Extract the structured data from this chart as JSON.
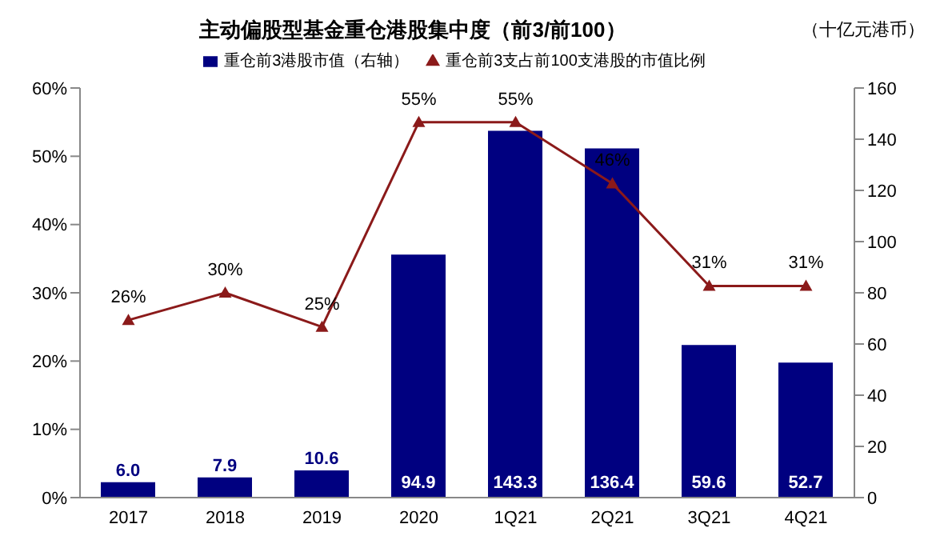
{
  "chart_data": {
    "type": "bar",
    "title": "主动偏股型基金重仓港股集中度（前3/前100）",
    "annotations": [
      "（十亿元港币）"
    ],
    "categories": [
      "2017",
      "2018",
      "2019",
      "2020",
      "1Q21",
      "2Q21",
      "3Q21",
      "4Q21"
    ],
    "series": [
      {
        "name": "重仓前3港股市值（右轴）",
        "axis": "y2",
        "color": "#000080",
        "values": [
          6.0,
          7.9,
          10.6,
          94.9,
          143.3,
          136.4,
          59.6,
          52.7
        ],
        "value_labels": [
          "6.0",
          "7.9",
          "10.6",
          "94.9",
          "143.3",
          "136.4",
          "59.6",
          "52.7"
        ]
      },
      {
        "name": "重仓前3支占前100支港股的市值比例",
        "type": "line",
        "color": "#8b1a1a",
        "marker": "triangle",
        "values": [
          26,
          30,
          25,
          55,
          55,
          46,
          31,
          31
        ],
        "value_labels": [
          "26%",
          "30%",
          "25%",
          "55%",
          "55%",
          "46%",
          "31%",
          "31%"
        ]
      }
    ],
    "ylim": [
      0,
      60
    ],
    "yticks": [
      {
        "value": 0,
        "label": "0%"
      },
      {
        "value": 10,
        "label": "10%"
      },
      {
        "value": 20,
        "label": "20%"
      },
      {
        "value": 30,
        "label": "30%"
      },
      {
        "value": 40,
        "label": "40%"
      },
      {
        "value": 50,
        "label": "50%"
      },
      {
        "value": 60,
        "label": "60%"
      }
    ],
    "y2lim": [
      0,
      160
    ],
    "y2ticks": [
      0,
      20,
      40,
      60,
      80,
      100,
      120,
      140,
      160
    ],
    "grid": false,
    "legend": "top"
  }
}
